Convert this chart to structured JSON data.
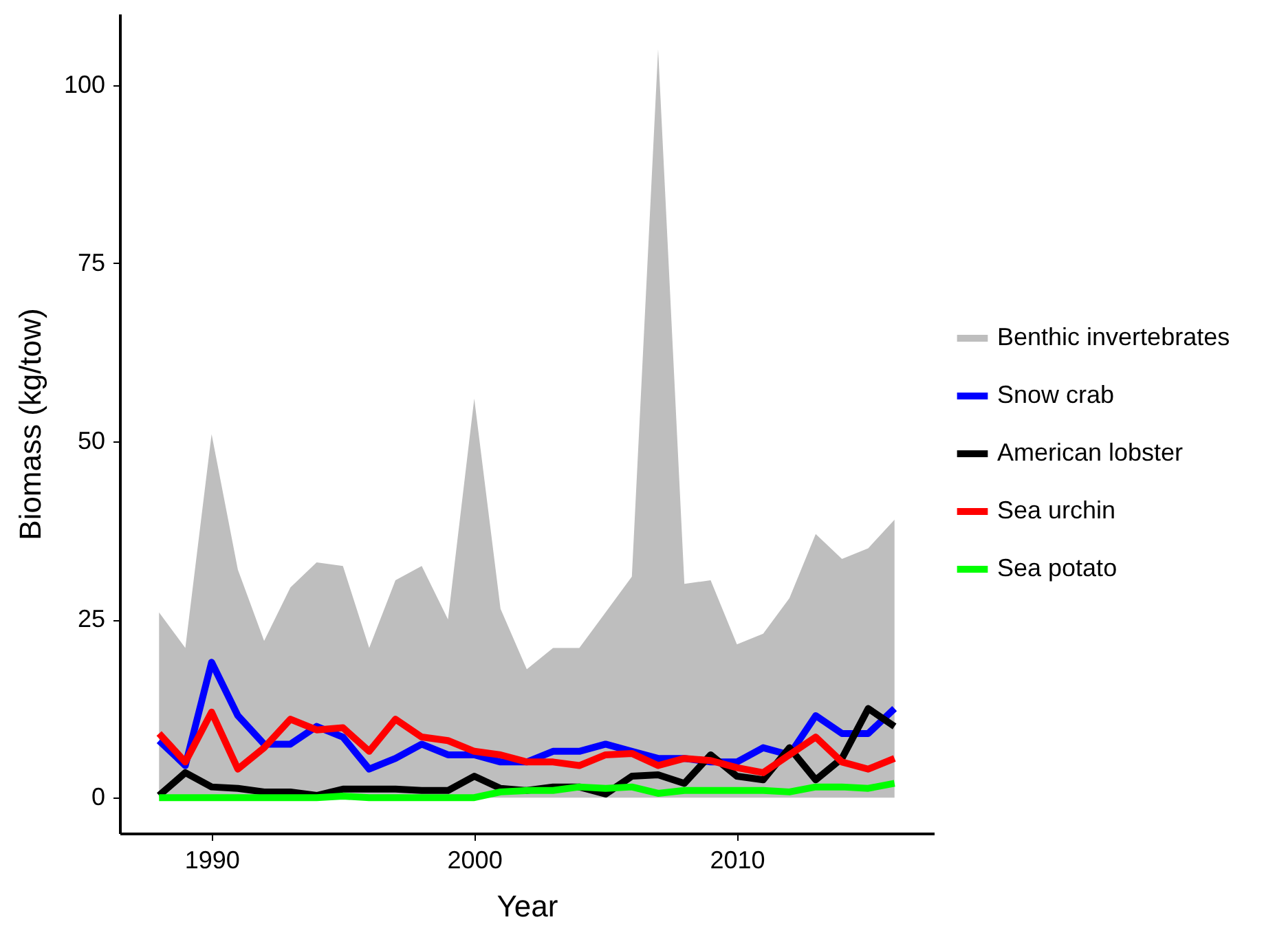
{
  "chart_data": {
    "type": "line",
    "xlabel": "Year",
    "ylabel": "Biomass (kg/tow)",
    "x": [
      1988,
      1989,
      1990,
      1991,
      1992,
      1993,
      1994,
      1995,
      1996,
      1997,
      1998,
      1999,
      2000,
      2001,
      2002,
      2003,
      2004,
      2005,
      2006,
      2007,
      2008,
      2009,
      2010,
      2011,
      2012,
      2013,
      2014,
      2015,
      2016
    ],
    "series": [
      {
        "name": "Benthic invertebrates",
        "type": "area",
        "color": "#bebebe",
        "values": [
          26,
          21,
          51,
          32,
          22,
          29.5,
          33,
          32.5,
          21,
          30.5,
          32.5,
          25,
          56,
          26.5,
          18,
          21,
          21,
          26,
          31,
          105,
          30,
          30.5,
          21.5,
          23,
          28,
          37,
          33.5,
          35,
          39
        ]
      },
      {
        "name": "Snow crab",
        "color": "#0000ff",
        "values": [
          8,
          4.5,
          19,
          11.5,
          7.5,
          7.5,
          10,
          8.5,
          4,
          5.5,
          7.5,
          6,
          6,
          5,
          5,
          6.5,
          6.5,
          7.5,
          6.5,
          5.5,
          5.5,
          5,
          5,
          7,
          6,
          11.5,
          9,
          9,
          12.5
        ]
      },
      {
        "name": "American lobster",
        "color": "#000000",
        "values": [
          0.3,
          3.5,
          1.5,
          1.3,
          0.8,
          0.8,
          0.3,
          1.2,
          1.2,
          1.2,
          1,
          1,
          3,
          1.3,
          1,
          1.5,
          1.5,
          0.5,
          3,
          3.2,
          2,
          6,
          3,
          2.5,
          7,
          2.5,
          5.5,
          12.5,
          10
        ]
      },
      {
        "name": "Sea urchin",
        "color": "#ff0000",
        "values": [
          9,
          5,
          12,
          4,
          7,
          11,
          9.5,
          9.8,
          6.5,
          11,
          8.5,
          8,
          6.5,
          6,
          5,
          5,
          4.5,
          6,
          6.2,
          4.5,
          5.5,
          5.2,
          4.2,
          3.5,
          6,
          8.5,
          5,
          4,
          5.5
        ]
      },
      {
        "name": "Sea potato",
        "color": "#00ff00",
        "values": [
          0,
          0,
          0,
          0,
          0,
          0,
          0,
          0.2,
          0,
          0,
          0,
          0,
          0,
          0.8,
          1,
          1,
          1.5,
          1.3,
          1.5,
          0.6,
          1,
          1,
          1,
          1,
          0.8,
          1.5,
          1.5,
          1.3,
          2
        ]
      }
    ],
    "xlim": [
      1986.5,
      2017.5
    ],
    "xticks": [
      1990,
      2000,
      2010
    ],
    "ylim": [
      -5,
      110
    ],
    "yticks": [
      0,
      25,
      50,
      75,
      100
    ],
    "grid": false,
    "legend": "right",
    "line_style": "solid",
    "marker": "none"
  }
}
